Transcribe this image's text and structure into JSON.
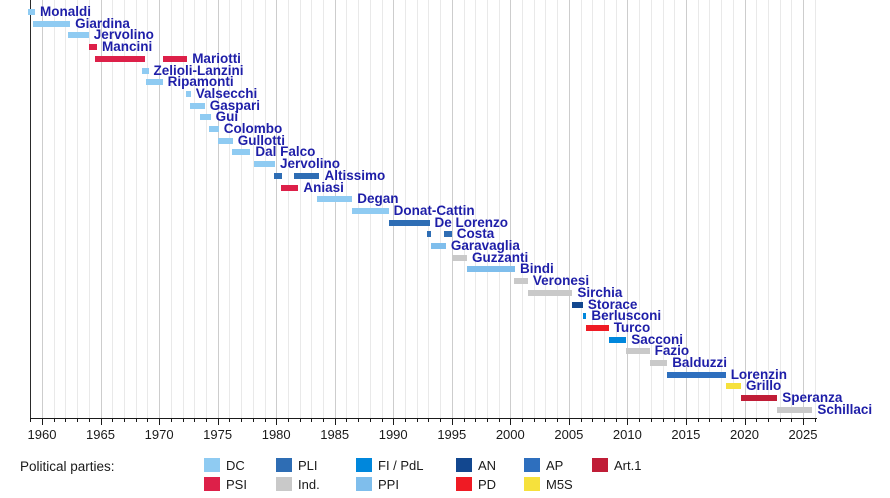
{
  "chart_data": {
    "type": "timeline",
    "description": "Timeline of ministers with party-colored term bars",
    "legend_title": "Political parties:",
    "axis": {
      "orientation": "x-bottom",
      "year_range": [
        1959,
        2026
      ],
      "major_tick_years": [
        1960,
        1965,
        1970,
        1975,
        1980,
        1985,
        1990,
        1995,
        2000,
        2005,
        2010,
        2015,
        2020,
        2025
      ],
      "minor_tick_every_years": 1,
      "grid": "vertical yearly gridlines"
    },
    "parties": [
      {
        "id": "DC",
        "label": "DC",
        "color": "#8FCBF2",
        "legend_row": 0,
        "legend_col": 0
      },
      {
        "id": "PLI",
        "label": "PLI",
        "color": "#2E6DB4",
        "legend_row": 0,
        "legend_col": 1
      },
      {
        "id": "FI",
        "label": "FI / PdL",
        "color": "#0087DC",
        "legend_row": 0,
        "legend_col": 2
      },
      {
        "id": "AN",
        "label": "AN",
        "color": "#12478F",
        "legend_row": 0,
        "legend_col": 3
      },
      {
        "id": "AP",
        "label": "AP",
        "color": "#2E6FBE",
        "legend_row": 0,
        "legend_col": 4
      },
      {
        "id": "ART1",
        "label": "Art.1",
        "color": "#C01D37",
        "legend_row": 0,
        "legend_col": 5
      },
      {
        "id": "PSI",
        "label": "PSI",
        "color": "#DD2049",
        "legend_row": 1,
        "legend_col": 0
      },
      {
        "id": "IND",
        "label": "Ind.",
        "color": "#C9C9C9",
        "legend_row": 1,
        "legend_col": 1
      },
      {
        "id": "PPI",
        "label": "PPI",
        "color": "#7FBEEC",
        "legend_row": 1,
        "legend_col": 2
      },
      {
        "id": "PD",
        "label": "PD",
        "color": "#EF1B24",
        "legend_row": 1,
        "legend_col": 3
      },
      {
        "id": "M5S",
        "label": "M5S",
        "color": "#F6E13C",
        "legend_row": 1,
        "legend_col": 4
      }
    ],
    "ministers": [
      {
        "name": "Monaldi",
        "party": "DC",
        "terms": [
          [
            1958.8,
            1959.4
          ]
        ]
      },
      {
        "name": "Giardina",
        "party": "DC",
        "terms": [
          [
            1959.2,
            1962.4
          ]
        ]
      },
      {
        "name": "Jervolino",
        "party": "DC",
        "terms": [
          [
            1962.2,
            1964.0
          ]
        ]
      },
      {
        "name": "Mancini",
        "party": "PSI",
        "terms": [
          [
            1964.0,
            1964.7
          ]
        ]
      },
      {
        "name": "Mariotti",
        "party": "PSI",
        "terms": [
          [
            1964.5,
            1968.8
          ],
          [
            1970.3,
            1972.4
          ]
        ]
      },
      {
        "name": "Zelioli-Lanzini",
        "party": "DC",
        "terms": [
          [
            1968.5,
            1969.1
          ]
        ]
      },
      {
        "name": "Ripamonti",
        "party": "DC",
        "terms": [
          [
            1968.9,
            1970.3
          ]
        ]
      },
      {
        "name": "Valsecchi",
        "party": "DC",
        "terms": [
          [
            1972.3,
            1972.7
          ]
        ]
      },
      {
        "name": "Gaspari",
        "party": "DC",
        "terms": [
          [
            1972.6,
            1973.9
          ]
        ]
      },
      {
        "name": "Gui",
        "party": "DC",
        "terms": [
          [
            1973.5,
            1974.4
          ]
        ]
      },
      {
        "name": "Colombo",
        "party": "DC",
        "terms": [
          [
            1974.3,
            1975.1
          ]
        ]
      },
      {
        "name": "Gullotti",
        "party": "DC",
        "terms": [
          [
            1975.0,
            1976.3
          ]
        ]
      },
      {
        "name": "Dal Falco",
        "party": "DC",
        "terms": [
          [
            1976.2,
            1977.8
          ]
        ]
      },
      {
        "name": "Jervolino",
        "party": "DC",
        "terms": [
          [
            1978.1,
            1979.9
          ]
        ]
      },
      {
        "name": "Altissimo",
        "party": "PLI",
        "terms": [
          [
            1979.8,
            1980.5
          ],
          [
            1981.5,
            1983.7
          ]
        ]
      },
      {
        "name": "Aniasi",
        "party": "PSI",
        "terms": [
          [
            1980.4,
            1981.9
          ]
        ]
      },
      {
        "name": "Degan",
        "party": "DC",
        "terms": [
          [
            1983.5,
            1986.5
          ]
        ]
      },
      {
        "name": "Donat-Cattin",
        "party": "DC",
        "terms": [
          [
            1986.5,
            1989.6
          ]
        ]
      },
      {
        "name": "De Lorenzo",
        "party": "PLI",
        "terms": [
          [
            1989.6,
            1993.1
          ]
        ]
      },
      {
        "name": "Costa",
        "party": "PLI",
        "terms": [
          [
            1992.9,
            1993.2
          ],
          [
            1994.3,
            1995.0
          ]
        ]
      },
      {
        "name": "Garavaglia",
        "party": "PPI",
        "terms": [
          [
            1993.2,
            1994.5
          ]
        ]
      },
      {
        "name": "Guzzanti",
        "party": "IND",
        "terms": [
          [
            1995.0,
            1996.3
          ]
        ]
      },
      {
        "name": "Bindi",
        "party": "PPI",
        "terms": [
          [
            1996.3,
            2000.4
          ]
        ]
      },
      {
        "name": "Veronesi",
        "party": "IND",
        "terms": [
          [
            2000.3,
            2001.5
          ]
        ]
      },
      {
        "name": "Sirchia",
        "party": "IND",
        "terms": [
          [
            2001.5,
            2005.3
          ]
        ]
      },
      {
        "name": "Storace",
        "party": "AN",
        "terms": [
          [
            2005.3,
            2006.2
          ]
        ]
      },
      {
        "name": "Berlusconi",
        "party": "FI",
        "terms": [
          [
            2006.17,
            2006.5
          ]
        ]
      },
      {
        "name": "Turco",
        "party": "PD",
        "terms": [
          [
            2006.5,
            2008.4
          ]
        ]
      },
      {
        "name": "Sacconi",
        "party": "FI",
        "terms": [
          [
            2008.4,
            2009.9
          ]
        ]
      },
      {
        "name": "Fazio",
        "party": "IND",
        "terms": [
          [
            2009.9,
            2011.9
          ]
        ]
      },
      {
        "name": "Balduzzi",
        "party": "IND",
        "terms": [
          [
            2011.9,
            2013.4
          ]
        ]
      },
      {
        "name": "Lorenzin",
        "party": "AP",
        "terms": [
          [
            2013.4,
            2018.4
          ]
        ]
      },
      {
        "name": "Grillo",
        "party": "M5S",
        "terms": [
          [
            2018.4,
            2019.7
          ]
        ]
      },
      {
        "name": "Speranza",
        "party": "ART1",
        "terms": [
          [
            2019.7,
            2022.8
          ]
        ]
      },
      {
        "name": "Schillaci",
        "party": "IND",
        "terms": [
          [
            2022.8,
            2025.8
          ]
        ]
      }
    ]
  }
}
